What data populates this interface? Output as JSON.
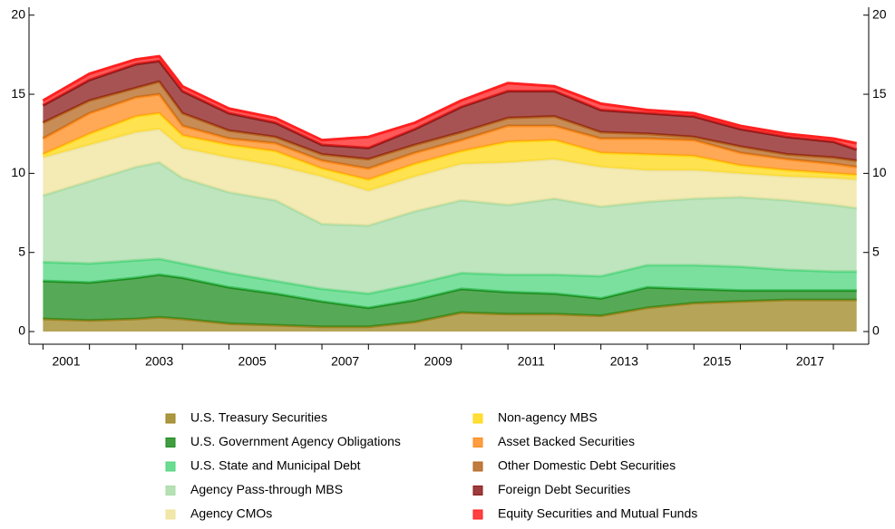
{
  "chart_data": {
    "type": "stacked_area",
    "x": [
      2001,
      2002,
      2003,
      2003.5,
      2004,
      2005,
      2006,
      2007,
      2008,
      2009,
      2010,
      2011,
      2012,
      2013,
      2014,
      2015,
      2016,
      2017,
      2018,
      2018.5
    ],
    "xlim": [
      2000.7,
      2018.76
    ],
    "xticks": [
      {
        "value": 2001.5,
        "label": "2001"
      },
      {
        "value": 2003.5,
        "label": "2003"
      },
      {
        "value": 2005.5,
        "label": "2005"
      },
      {
        "value": 2007.5,
        "label": "2007"
      },
      {
        "value": 2009.5,
        "label": "2009"
      },
      {
        "value": 2011.5,
        "label": "2011"
      },
      {
        "value": 2013.5,
        "label": "2013"
      },
      {
        "value": 2015.5,
        "label": "2015"
      },
      {
        "value": 2017.5,
        "label": "2017"
      }
    ],
    "xtick_marks": [
      2001,
      2002,
      2003,
      2004,
      2005,
      2006,
      2007,
      2008,
      2009,
      2010,
      2011,
      2012,
      2013,
      2014,
      2015,
      2016,
      2017,
      2018
    ],
    "ylim": [
      -0.8,
      20.5
    ],
    "yticks": [
      0,
      5,
      10,
      15,
      20
    ],
    "series": [
      {
        "name": "U.S. Treasury Securities",
        "color": "#9e8520",
        "values": [
          0.8,
          0.7,
          0.8,
          0.9,
          0.8,
          0.5,
          0.4,
          0.3,
          0.3,
          0.6,
          1.2,
          1.1,
          1.1,
          1.0,
          1.5,
          1.8,
          1.9,
          2.0,
          2.0,
          2.0
        ]
      },
      {
        "name": "U.S. Government Agency Obligations",
        "color": "#1e8c1e",
        "values": [
          2.4,
          2.4,
          2.6,
          2.7,
          2.6,
          2.3,
          2.0,
          1.6,
          1.2,
          1.4,
          1.5,
          1.4,
          1.3,
          1.1,
          1.3,
          0.9,
          0.7,
          0.6,
          0.6,
          0.6
        ]
      },
      {
        "name": "U.S. State and Municipal Debt",
        "color": "#4fd67e",
        "values": [
          1.2,
          1.2,
          1.1,
          1.0,
          0.9,
          0.9,
          0.8,
          0.8,
          0.9,
          1.0,
          1.0,
          1.1,
          1.2,
          1.4,
          1.4,
          1.5,
          1.5,
          1.3,
          1.2,
          1.2
        ]
      },
      {
        "name": "Agency Pass-through MBS",
        "color": "#a8dca8",
        "values": [
          4.2,
          5.2,
          5.9,
          6.1,
          5.4,
          5.1,
          5.1,
          4.1,
          4.3,
          4.6,
          4.6,
          4.4,
          4.8,
          4.4,
          4.0,
          4.2,
          4.4,
          4.4,
          4.2,
          4.0
        ]
      },
      {
        "name": "Agency CMOs",
        "color": "#efe39b",
        "values": [
          2.4,
          2.3,
          2.2,
          2.1,
          1.9,
          2.2,
          2.2,
          3.0,
          2.2,
          2.2,
          2.3,
          2.7,
          2.5,
          2.5,
          2.0,
          1.8,
          1.5,
          1.5,
          1.7,
          1.8
        ]
      },
      {
        "name": "Non-agency MBS",
        "color": "#ffd814",
        "values": [
          0.2,
          0.7,
          1.0,
          1.0,
          0.8,
          0.8,
          0.9,
          0.5,
          0.7,
          0.8,
          0.8,
          1.3,
          1.2,
          0.9,
          1.0,
          0.9,
          0.5,
          0.4,
          0.3,
          0.3
        ]
      },
      {
        "name": "Asset Backed Securities",
        "color": "#ff8c1e",
        "values": [
          1.0,
          1.3,
          1.2,
          1.2,
          0.6,
          0.4,
          0.5,
          0.5,
          0.7,
          0.7,
          0.7,
          1.0,
          0.9,
          0.9,
          1.0,
          1.0,
          0.8,
          0.7,
          0.6,
          0.5
        ]
      },
      {
        "name": "Other Domestic Debt Securities",
        "color": "#b5651d",
        "values": [
          1.0,
          0.8,
          0.6,
          0.8,
          0.8,
          0.5,
          0.4,
          0.4,
          0.6,
          0.5,
          0.5,
          0.5,
          0.6,
          0.4,
          0.3,
          0.2,
          0.4,
          0.3,
          0.4,
          0.4
        ]
      },
      {
        "name": "Foreign Debt Securities",
        "color": "#8b1a1a",
        "values": [
          1.1,
          1.3,
          1.5,
          1.3,
          1.4,
          1.1,
          0.9,
          0.6,
          0.7,
          1.0,
          1.6,
          1.7,
          1.6,
          1.4,
          1.3,
          1.3,
          1.1,
          1.1,
          1.0,
          0.7
        ]
      },
      {
        "name": "Equity Securities and Mutual Funds",
        "color": "#ff2020",
        "values": [
          0.3,
          0.4,
          0.3,
          0.3,
          0.3,
          0.3,
          0.3,
          0.3,
          0.7,
          0.4,
          0.4,
          0.5,
          0.3,
          0.4,
          0.2,
          0.2,
          0.2,
          0.2,
          0.2,
          0.4
        ]
      }
    ]
  }
}
